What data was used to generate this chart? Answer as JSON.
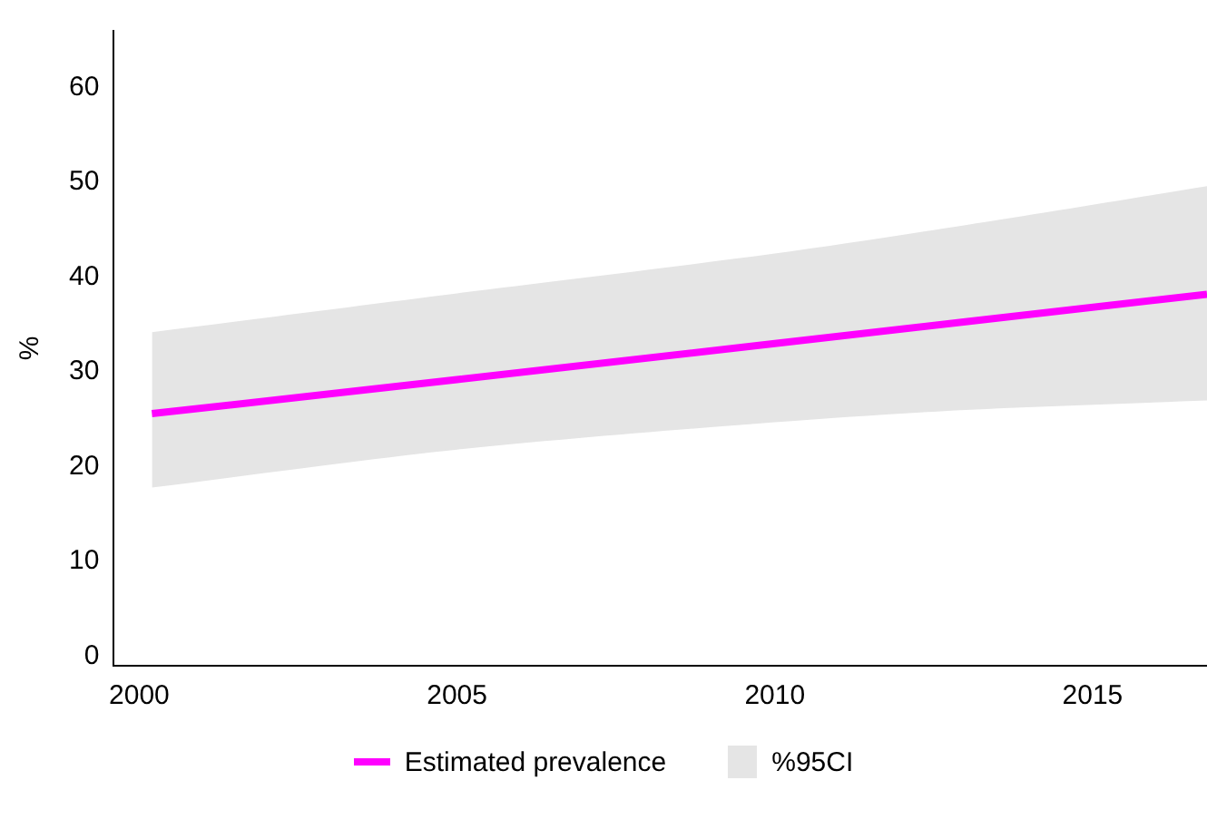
{
  "chart_data": {
    "type": "line",
    "ylabel": "%",
    "x": [
      2000.2,
      2005,
      2010,
      2013,
      2016.8
    ],
    "series": [
      {
        "name": "Estimated prevalence",
        "color": "#ff00ff",
        "values": [
          25.6,
          29.2,
          33.0,
          35.3,
          38.2
        ],
        "lower": [
          17.8,
          21.8,
          24.7,
          26.0,
          27.0
        ],
        "upper": [
          34.2,
          38.3,
          42.5,
          45.5,
          49.6
        ]
      }
    ],
    "annotations": [
      "%95CI"
    ],
    "xlim": [
      1999.6,
      2016.8
    ],
    "xticks": [
      2000,
      2005,
      2010,
      2015
    ],
    "ylim": [
      -1,
      66
    ],
    "yticks": [
      0,
      10,
      20,
      30,
      40,
      50,
      60
    ],
    "grid": false,
    "legend": "bottom"
  }
}
